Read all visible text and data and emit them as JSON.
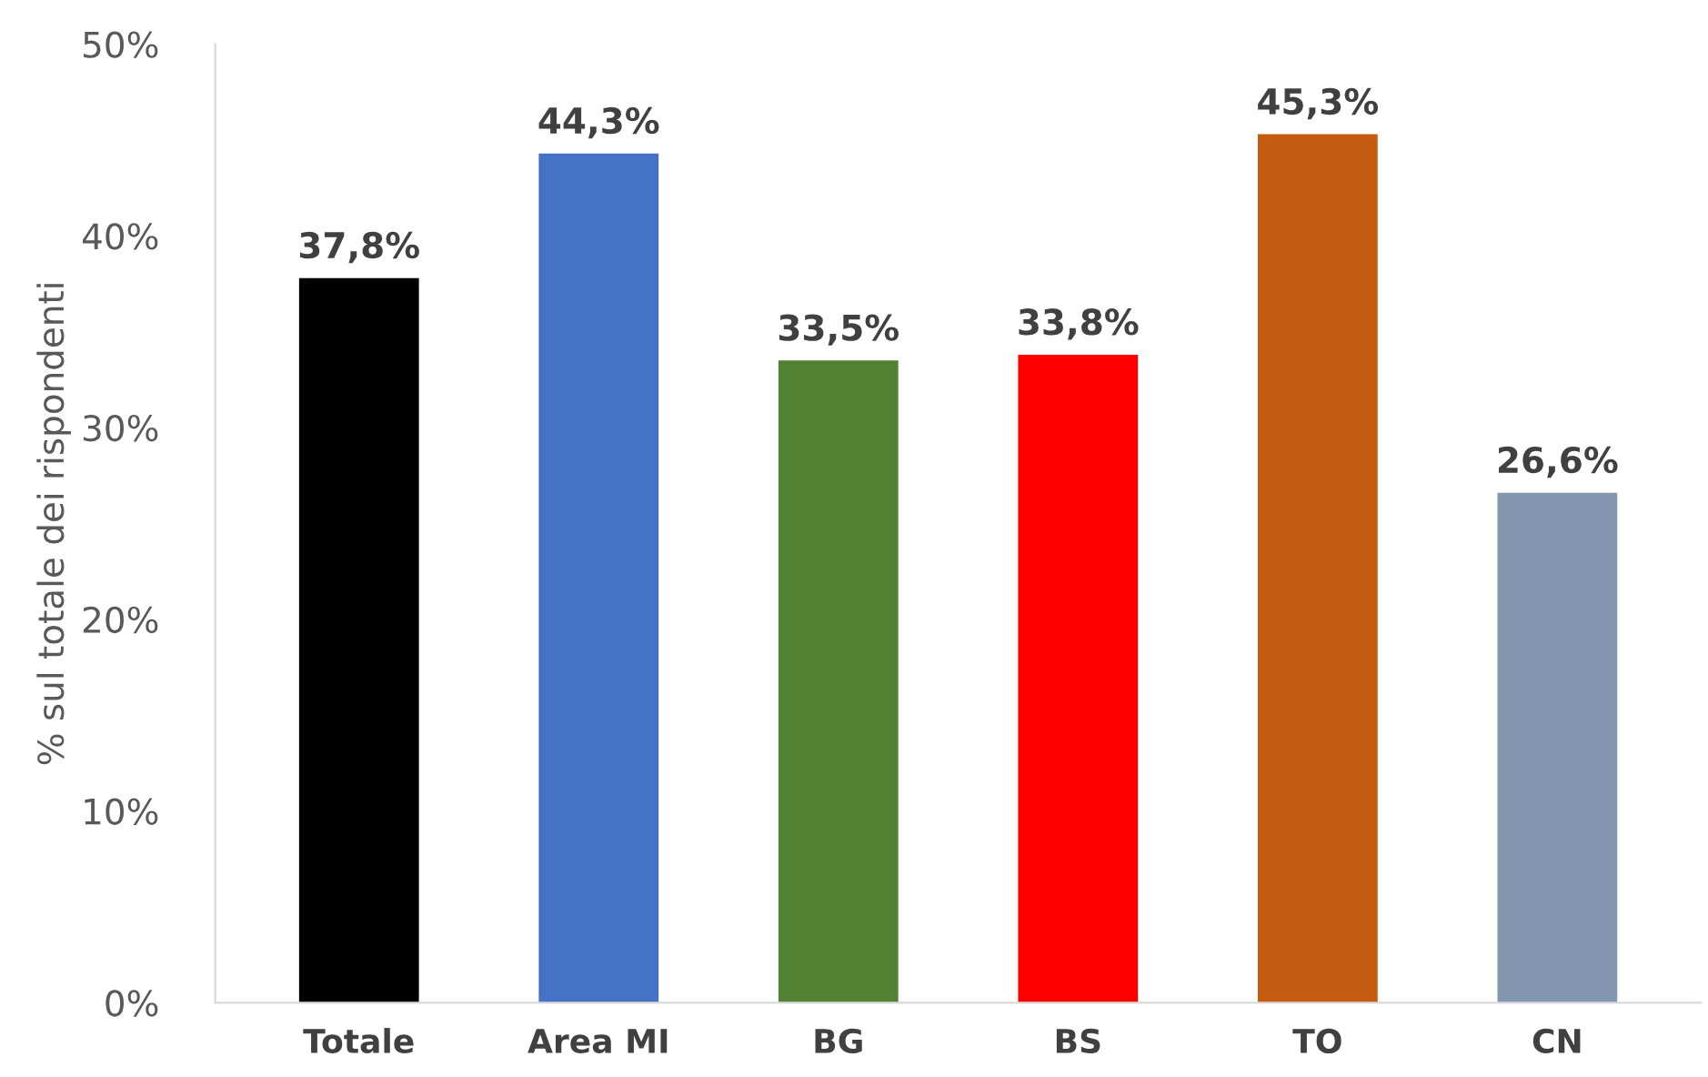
{
  "chart_data": {
    "type": "bar",
    "ylabel": "% sul totale dei rispondenti",
    "categories": [
      "Totale",
      "Area MI",
      "BG",
      "BS",
      "TO",
      "CN"
    ],
    "values": [
      37.8,
      44.3,
      33.5,
      33.8,
      45.3,
      26.6
    ],
    "colors": [
      "#000000",
      "#4472c4",
      "#548235",
      "#ff0000",
      "#c55a11",
      "#8497b0"
    ],
    "value_labels": [
      "37,8%",
      "44,3%",
      "33,5%",
      "33,8%",
      "45,3%",
      "26,6%"
    ],
    "ylim": [
      0,
      50
    ],
    "yticks": [
      {
        "value": 0,
        "label": "0%"
      },
      {
        "value": 10,
        "label": "10%"
      },
      {
        "value": 20,
        "label": "20%"
      },
      {
        "value": 30,
        "label": "30%"
      },
      {
        "value": 40,
        "label": "40%"
      },
      {
        "value": 50,
        "label": "50%"
      }
    ],
    "grid": false,
    "legend": false
  }
}
